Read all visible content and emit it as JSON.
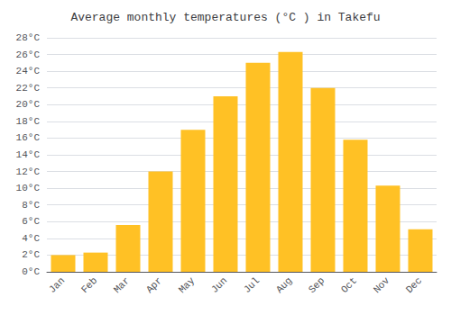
{
  "chart_data": {
    "type": "bar",
    "title": "Average monthly temperatures (°C ) in Takefu",
    "categories": [
      "Jan",
      "Feb",
      "Mar",
      "Apr",
      "May",
      "Jun",
      "Jul",
      "Aug",
      "Sep",
      "Oct",
      "Nov",
      "Dec"
    ],
    "values": [
      2.0,
      2.3,
      5.6,
      12.0,
      17.0,
      21.0,
      25.0,
      26.3,
      22.0,
      15.8,
      10.3,
      5.1
    ],
    "color": "#FFC125",
    "ylim": [
      0,
      28
    ],
    "yticks": [
      {
        "value": 0,
        "label": "0°C"
      },
      {
        "value": 2,
        "label": "2°C"
      },
      {
        "value": 4,
        "label": "4°C"
      },
      {
        "value": 6,
        "label": "6°C"
      },
      {
        "value": 8,
        "label": "8°C"
      },
      {
        "value": 10,
        "label": "10°C"
      },
      {
        "value": 12,
        "label": "12°C"
      },
      {
        "value": 14,
        "label": "14°C"
      },
      {
        "value": 16,
        "label": "16°C"
      },
      {
        "value": 18,
        "label": "18°C"
      },
      {
        "value": 20,
        "label": "20°C"
      },
      {
        "value": 22,
        "label": "22°C"
      },
      {
        "value": 24,
        "label": "24°C"
      },
      {
        "value": 26,
        "label": "26°C"
      },
      {
        "value": 28,
        "label": "28°C"
      }
    ],
    "grid": true
  }
}
